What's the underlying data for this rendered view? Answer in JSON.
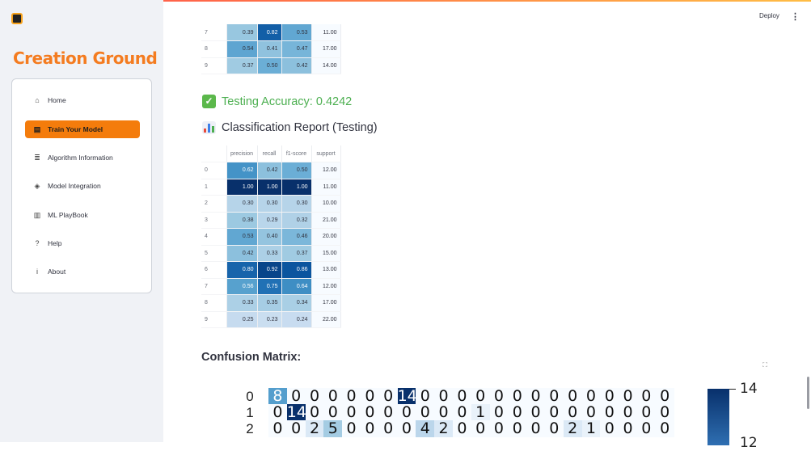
{
  "app": {
    "brand": "Creation Ground",
    "deploy_label": "Deploy",
    "kebab": "⋮"
  },
  "sidebar": {
    "items": [
      {
        "label": "Home",
        "icon": "home-icon",
        "glyph": "⌂",
        "active": false
      },
      {
        "label": "Train Your Model",
        "icon": "printer-icon",
        "glyph": "▤",
        "active": true
      },
      {
        "label": "Algorithm Information",
        "icon": "database-icon",
        "glyph": "≣",
        "active": false
      },
      {
        "label": "Model Integration",
        "icon": "layers-icon",
        "glyph": "◈",
        "active": false
      },
      {
        "label": "ML PlayBook",
        "icon": "book-icon",
        "glyph": "▥",
        "active": false
      },
      {
        "label": "Help",
        "icon": "question-circle-icon",
        "glyph": "?",
        "active": false
      },
      {
        "label": "About",
        "icon": "info-circle-icon",
        "glyph": "i",
        "active": false
      }
    ]
  },
  "top_table": {
    "rows": [
      {
        "index": "7",
        "cells": [
          "0.39",
          "0.82",
          "0.53",
          "11.00"
        ]
      },
      {
        "index": "8",
        "cells": [
          "0.54",
          "0.41",
          "0.47",
          "17.00"
        ]
      },
      {
        "index": "9",
        "cells": [
          "0.37",
          "0.50",
          "0.42",
          "14.00"
        ]
      }
    ]
  },
  "testing_accuracy": "Testing Accuracy: 0.4242",
  "report_title": "Classification Report (Testing)",
  "report_table": {
    "headers": [
      "precision",
      "recall",
      "f1-score",
      "support"
    ],
    "rows": [
      {
        "index": "0",
        "cells": [
          "0.62",
          "0.42",
          "0.50",
          "12.00"
        ]
      },
      {
        "index": "1",
        "cells": [
          "1.00",
          "1.00",
          "1.00",
          "11.00"
        ]
      },
      {
        "index": "2",
        "cells": [
          "0.30",
          "0.30",
          "0.30",
          "10.00"
        ]
      },
      {
        "index": "3",
        "cells": [
          "0.38",
          "0.29",
          "0.32",
          "21.00"
        ]
      },
      {
        "index": "4",
        "cells": [
          "0.53",
          "0.40",
          "0.46",
          "20.00"
        ]
      },
      {
        "index": "5",
        "cells": [
          "0.42",
          "0.33",
          "0.37",
          "15.00"
        ]
      },
      {
        "index": "6",
        "cells": [
          "0.80",
          "0.92",
          "0.86",
          "13.00"
        ]
      },
      {
        "index": "7",
        "cells": [
          "0.56",
          "0.75",
          "0.64",
          "12.00"
        ]
      },
      {
        "index": "8",
        "cells": [
          "0.33",
          "0.35",
          "0.34",
          "17.00"
        ]
      },
      {
        "index": "9",
        "cells": [
          "0.25",
          "0.23",
          "0.24",
          "22.00"
        ]
      }
    ]
  },
  "confusion_matrix_title": "Confusion Matrix:",
  "chart_data": {
    "type": "heatmap",
    "rows": [
      "0",
      "1",
      "2"
    ],
    "values": [
      [
        8,
        0,
        0,
        0,
        0,
        0,
        0,
        14,
        0,
        0,
        0,
        0,
        0,
        0,
        0,
        0,
        0,
        0,
        0,
        0,
        0,
        0
      ],
      [
        0,
        14,
        0,
        0,
        0,
        0,
        0,
        0,
        0,
        0,
        0,
        1,
        0,
        0,
        0,
        0,
        0,
        0,
        0,
        0,
        0,
        0
      ],
      [
        0,
        0,
        2,
        5,
        0,
        0,
        0,
        0,
        4,
        2,
        0,
        0,
        0,
        0,
        0,
        0,
        2,
        1,
        0,
        0,
        0,
        0
      ]
    ],
    "vmax": 14,
    "colorbar_top_label": "14",
    "colorbar_next_label": "12"
  }
}
